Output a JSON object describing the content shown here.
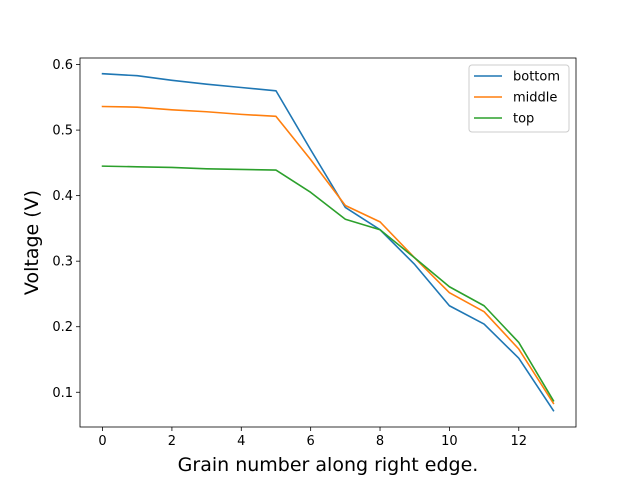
{
  "chart_data": {
    "type": "line",
    "xlabel": "Grain number along right edge.",
    "ylabel": "Voltage (V)",
    "xlim": [
      -0.65,
      13.65
    ],
    "ylim": [
      0.047,
      0.61
    ],
    "xticks": [
      0,
      2,
      4,
      6,
      8,
      10,
      12
    ],
    "yticks": [
      0.1,
      0.2,
      0.3,
      0.4,
      0.5,
      0.6
    ],
    "grid": false,
    "legend_position": "top-right",
    "x": [
      0,
      1,
      2,
      3,
      4,
      5,
      6,
      7,
      8,
      9,
      10,
      11,
      12,
      13
    ],
    "series": [
      {
        "name": "bottom",
        "color": "#1f77b4",
        "values": [
          0.586,
          0.583,
          0.576,
          0.57,
          0.565,
          0.56,
          0.47,
          0.382,
          0.348,
          0.295,
          0.232,
          0.204,
          0.152,
          0.072
        ]
      },
      {
        "name": "middle",
        "color": "#ff7f0e",
        "values": [
          0.536,
          0.535,
          0.531,
          0.528,
          0.524,
          0.521,
          0.455,
          0.385,
          0.36,
          0.305,
          0.252,
          0.223,
          0.166,
          0.083
        ]
      },
      {
        "name": "top",
        "color": "#2ca02c",
        "values": [
          0.445,
          0.444,
          0.443,
          0.441,
          0.44,
          0.439,
          0.405,
          0.364,
          0.348,
          0.305,
          0.261,
          0.232,
          0.176,
          0.087
        ]
      }
    ]
  }
}
